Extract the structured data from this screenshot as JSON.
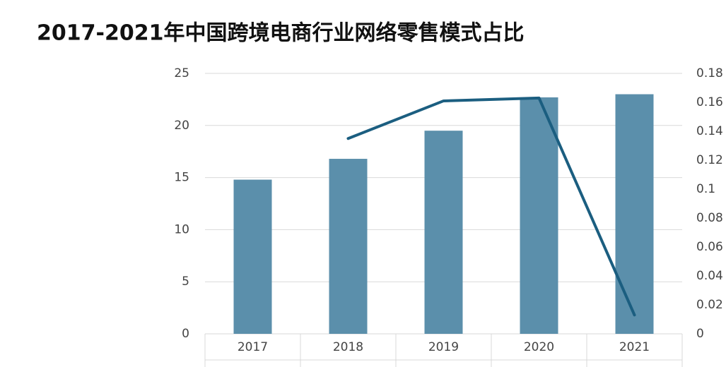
{
  "chart_data": {
    "type": "bar_line",
    "title": "2017-2021年中国跨境电商行业网络零售模式占比",
    "categories": [
      "2017",
      "2018",
      "2019",
      "2020",
      "2021"
    ],
    "series": [
      {
        "type": "bar",
        "color": "#5b8fab",
        "values": [
          14.8,
          16.8,
          19.5,
          22.7,
          23.0
        ]
      },
      {
        "type": "line",
        "axis": "y2",
        "color": "#1b5e80",
        "values": [
          null,
          0.135,
          0.161,
          0.163,
          0.013
        ]
      }
    ],
    "ylim": [
      0,
      25
    ],
    "yticks": [
      0,
      5,
      10,
      15,
      20,
      25
    ],
    "y2lim": [
      0,
      0.18
    ],
    "y2ticks": [
      0,
      0.02,
      0.04,
      0.06,
      0.08,
      0.1,
      0.12,
      0.14,
      0.16,
      0.18
    ],
    "grid": true
  }
}
